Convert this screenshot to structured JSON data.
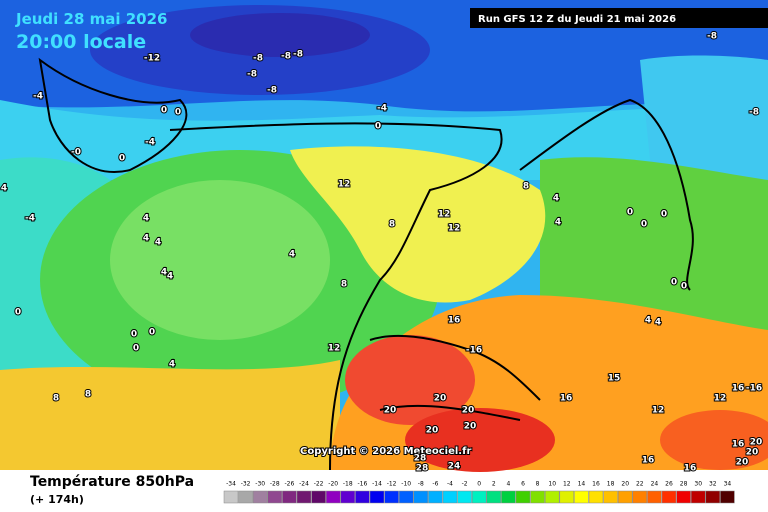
{
  "header": {
    "date": "Jeudi 28 mai 2026",
    "time": "20:00 locale",
    "run": "Run GFS 12 Z du Jeudi 21 mai 2026"
  },
  "map": {
    "labels": [
      "-12",
      "-8",
      "-8",
      "-8",
      "-8",
      "-8",
      "-8",
      "-8",
      "-4",
      "-4",
      "0",
      "0",
      "0",
      "-4",
      "-0",
      "0",
      "4",
      "-4",
      "4",
      "4",
      "4",
      "4",
      "4",
      "4",
      "12",
      "8",
      "12",
      "12",
      "8",
      "4",
      "4",
      "0",
      "0",
      "0",
      "0",
      "0",
      "4",
      "4",
      "8",
      "12",
      "0",
      "0",
      "0",
      "0",
      "4",
      "16",
      "-16",
      "20",
      "16",
      "15",
      "16",
      "-16",
      "12",
      "12",
      "20",
      "20",
      "20",
      "20",
      "16",
      "20",
      "20",
      "16",
      "16",
      "20",
      "24",
      "28",
      "28",
      "8",
      "8"
    ],
    "copyright": "Copyright © 2026 Meteociel.fr"
  },
  "legend": {
    "title": "Température 850hPa",
    "lead": "(+ 174h)",
    "scale": [
      -34,
      -32,
      -30,
      -28,
      -26,
      -24,
      -22,
      -20,
      -18,
      -16,
      -14,
      -12,
      -10,
      -8,
      -6,
      -4,
      -2,
      0,
      2,
      4,
      6,
      8,
      10,
      12,
      14,
      16,
      18,
      20,
      22,
      24,
      26,
      28,
      30,
      32,
      34
    ]
  }
}
